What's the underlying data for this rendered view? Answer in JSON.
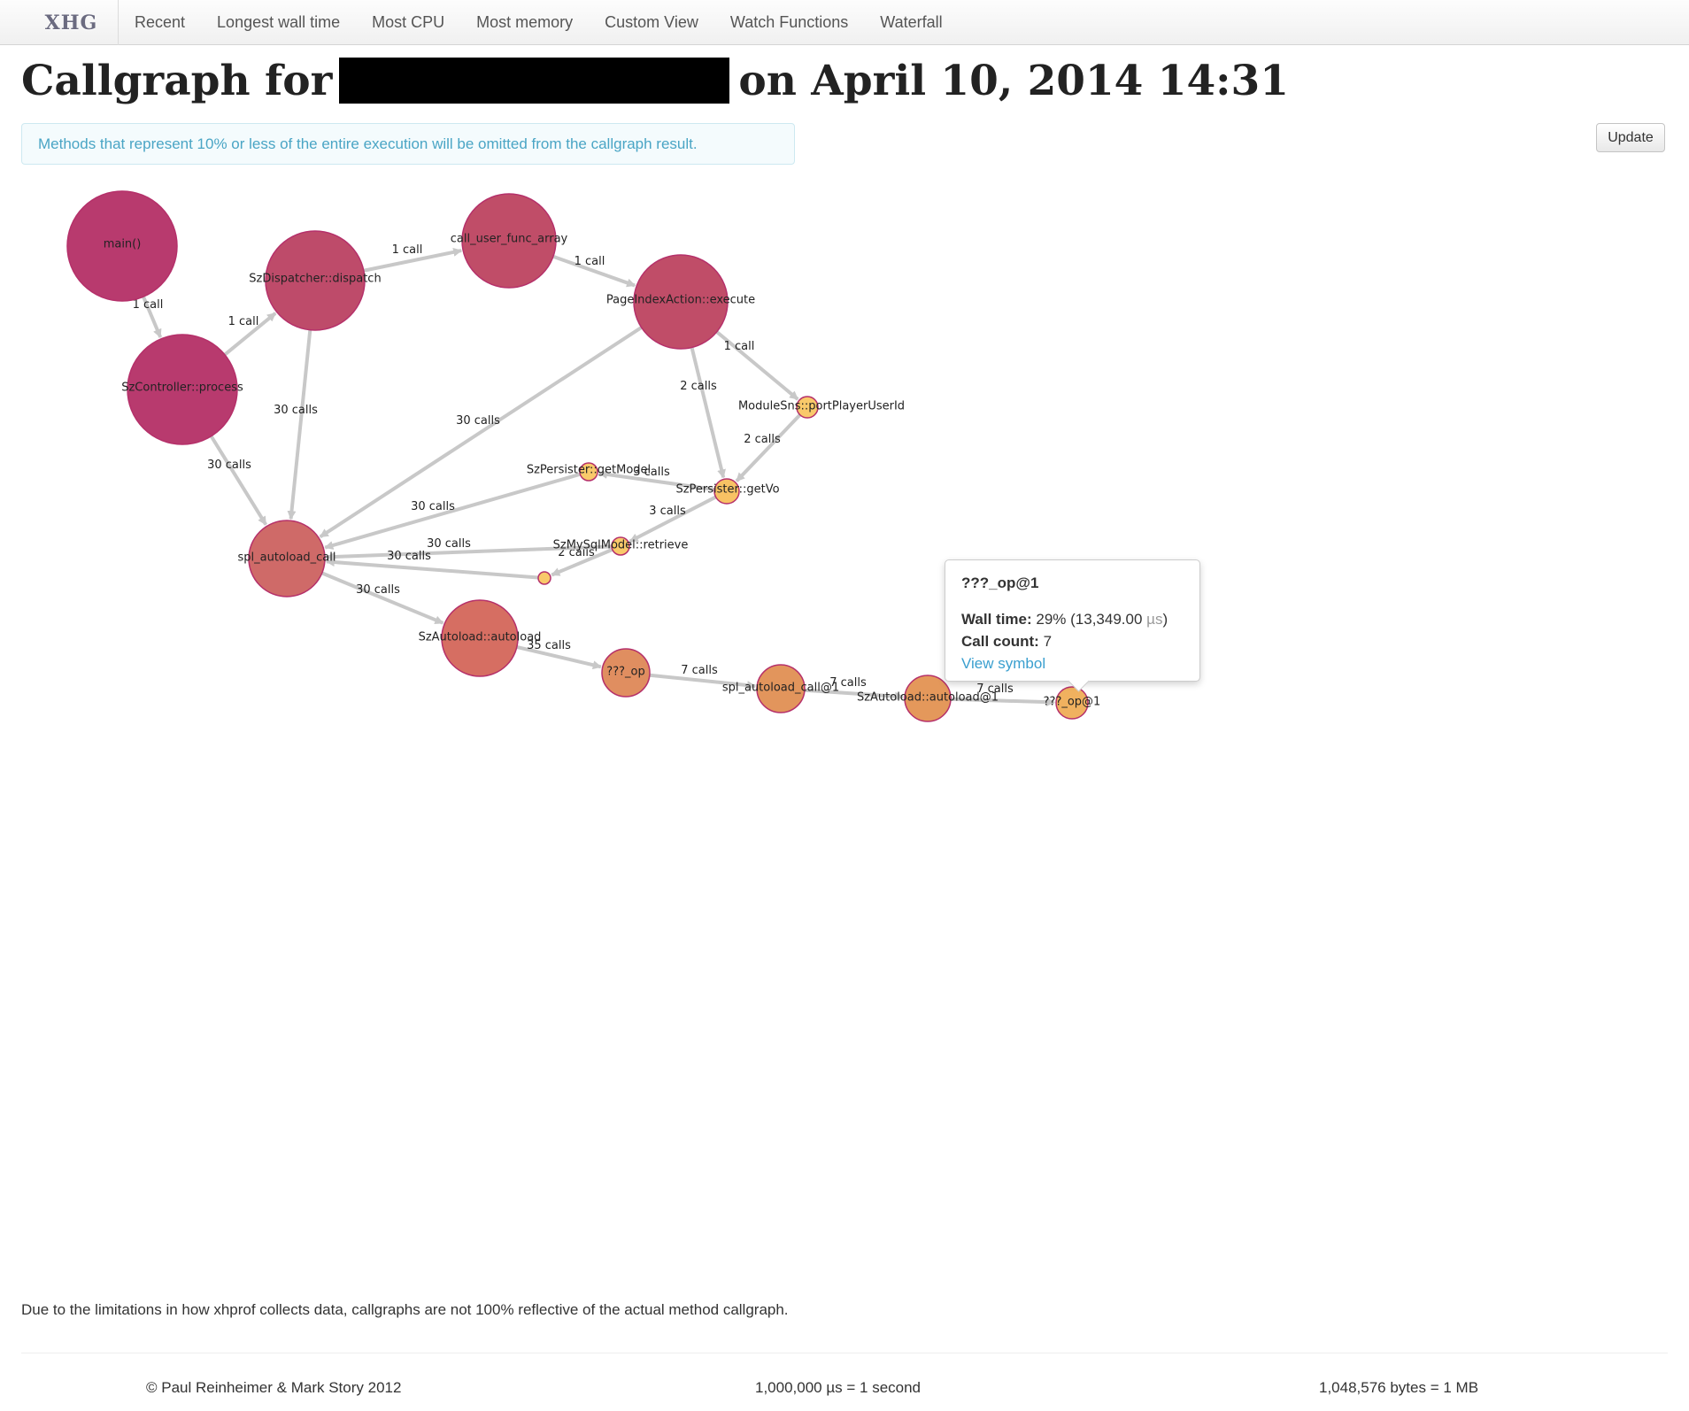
{
  "navbar": {
    "brand": "XHG",
    "links": [
      "Recent",
      "Longest wall time",
      "Most CPU",
      "Most memory",
      "Custom View",
      "Watch Functions",
      "Waterfall"
    ]
  },
  "header": {
    "title_prefix": "Callgraph for",
    "title_suffix": "on April 10, 2014 14:31"
  },
  "alert": {
    "text": "Methods that represent 10% or less of the entire execution will be omitted from the callgraph result."
  },
  "update_button": {
    "label": "Update"
  },
  "graph": {
    "nodes": [
      {
        "id": "main",
        "label": "main()"
      },
      {
        "id": "szc",
        "label": "SzController::process"
      },
      {
        "id": "szd",
        "label": "SzDispatcher::dispatch"
      },
      {
        "id": "cuf",
        "label": "call_user_func_array"
      },
      {
        "id": "pia",
        "label": "PageIndexAction::execute"
      },
      {
        "id": "msn",
        "label": "ModuleSns::portPlayerUserId"
      },
      {
        "id": "gm",
        "label": "SzPersister::getModel"
      },
      {
        "id": "gv",
        "label": "SzPersister::getVo"
      },
      {
        "id": "smr",
        "label": "SzMySqlModel::retrieve"
      },
      {
        "id": "anon",
        "label": ""
      },
      {
        "id": "sac",
        "label": "spl_autoload_call"
      },
      {
        "id": "saa",
        "label": "SzAutoload::autoload"
      },
      {
        "id": "op",
        "label": "???_op"
      },
      {
        "id": "sac1",
        "label": "spl_autoload_call@1"
      },
      {
        "id": "saa1",
        "label": "SzAutoload::autoload@1"
      },
      {
        "id": "op1",
        "label": "???_op@1"
      }
    ],
    "edges": [
      {
        "from": "main",
        "to": "szc",
        "label": "1 call"
      },
      {
        "from": "szc",
        "to": "szd",
        "label": "1 call"
      },
      {
        "from": "szd",
        "to": "cuf",
        "label": "1 call"
      },
      {
        "from": "cuf",
        "to": "pia",
        "label": "1 call"
      },
      {
        "from": "pia",
        "to": "msn",
        "label": "1 call"
      },
      {
        "from": "pia",
        "to": "gv",
        "label": "2 calls"
      },
      {
        "from": "msn",
        "to": "gv",
        "label": "2 calls"
      },
      {
        "from": "gv",
        "to": "gm",
        "label": "3 calls"
      },
      {
        "from": "gv",
        "to": "smr",
        "label": "3 calls"
      },
      {
        "from": "smr",
        "to": "anon",
        "label": "2 calls"
      },
      {
        "from": "szc",
        "to": "sac",
        "label": "30 calls"
      },
      {
        "from": "szd",
        "to": "sac",
        "label": "30 calls"
      },
      {
        "from": "pia",
        "to": "sac",
        "label": "30 calls"
      },
      {
        "from": "gm",
        "to": "sac",
        "label": "30 calls"
      },
      {
        "from": "smr",
        "to": "sac",
        "label": "30 calls"
      },
      {
        "from": "anon",
        "to": "sac",
        "label": "30 calls"
      },
      {
        "from": "sac",
        "to": "saa",
        "label": "30 calls"
      },
      {
        "from": "saa",
        "to": "op",
        "label": "35 calls"
      },
      {
        "from": "op",
        "to": "sac1",
        "label": "7 calls"
      },
      {
        "from": "sac1",
        "to": "saa1",
        "label": "7 calls"
      },
      {
        "from": "saa1",
        "to": "op1",
        "label": "7 calls"
      }
    ]
  },
  "tooltip": {
    "title": "???_op@1",
    "wall_time_label": "Wall time:",
    "wall_time_value": "29% (13,349.00",
    "wall_time_unit": "µs",
    "wall_time_close": ")",
    "call_count_label": "Call count:",
    "call_count_value": "7",
    "link": "View symbol"
  },
  "footer": {
    "note": "Due to the limitations in how xhprof collects data, callgraphs are not 100% reflective of the actual method callgraph.",
    "credits": "© Paul Reinheimer & Mark Story 2012",
    "time_unit": "1,000,000 µs = 1 second",
    "memory_unit": "1,048,576 bytes = 1 MB"
  }
}
